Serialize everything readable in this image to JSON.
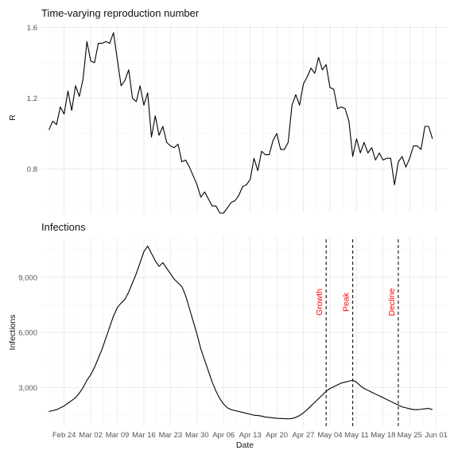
{
  "chart_data": [
    {
      "type": "line",
      "title": "Time-varying reproduction number",
      "xlabel": "",
      "ylabel": "R",
      "ylim": [
        0.55,
        1.62
      ],
      "yticks": [
        0.8,
        1.2,
        1.6
      ],
      "ytick_labels": [
        "0.8",
        "1.2",
        "1.6"
      ],
      "grid": true,
      "x_start": "2020-02-20",
      "x_step_days": 1,
      "series": [
        {
          "color": "#000000",
          "values": [
            1.02,
            1.07,
            1.05,
            1.15,
            1.11,
            1.24,
            1.13,
            1.27,
            1.21,
            1.31,
            1.52,
            1.41,
            1.4,
            1.51,
            1.51,
            1.52,
            1.51,
            1.57,
            1.42,
            1.27,
            1.3,
            1.36,
            1.2,
            1.18,
            1.27,
            1.16,
            1.23,
            0.98,
            1.1,
            0.99,
            1.04,
            0.95,
            0.93,
            0.92,
            0.94,
            0.84,
            0.85,
            0.81,
            0.76,
            0.71,
            0.64,
            0.67,
            0.63,
            0.59,
            0.59,
            0.55,
            0.55,
            0.58,
            0.61,
            0.62,
            0.65,
            0.7,
            0.71,
            0.74,
            0.86,
            0.79,
            0.9,
            0.88,
            0.88,
            0.96,
            1.0,
            0.91,
            0.91,
            0.95,
            1.16,
            1.22,
            1.16,
            1.28,
            1.32,
            1.37,
            1.34,
            1.43,
            1.36,
            1.39,
            1.26,
            1.25,
            1.14,
            1.15,
            1.14,
            1.07,
            0.87,
            0.97,
            0.89,
            0.95,
            0.89,
            0.92,
            0.85,
            0.89,
            0.85,
            0.86,
            0.86,
            0.71,
            0.84,
            0.87,
            0.81,
            0.86,
            0.93,
            0.93,
            0.91,
            1.04,
            1.04,
            0.97
          ]
        }
      ]
    },
    {
      "type": "line",
      "title": "Infections",
      "xlabel": "Date",
      "ylabel": "Infections",
      "ylim": [
        900,
        11200
      ],
      "yticks": [
        3000,
        6000,
        9000
      ],
      "ytick_labels": [
        "3,000",
        "6,000",
        "9,000"
      ],
      "grid": true,
      "x_start": "2020-02-20",
      "x_step_days": 1,
      "x_ticks": [
        "2020-02-24",
        "2020-03-02",
        "2020-03-09",
        "2020-03-16",
        "2020-03-23",
        "2020-03-30",
        "2020-04-06",
        "2020-04-13",
        "2020-04-20",
        "2020-04-27",
        "2020-05-04",
        "2020-05-11",
        "2020-05-18",
        "2020-05-25",
        "2020-06-01"
      ],
      "x_tick_labels": [
        "Feb 24",
        "Mar 02",
        "Mar 09",
        "Mar 16",
        "Mar 23",
        "Mar 30",
        "Apr 06",
        "Apr 13",
        "Apr 20",
        "Apr 27",
        "May 04",
        "May 11",
        "May 18",
        "May 25",
        "Jun 01"
      ],
      "series": [
        {
          "color": "#000000",
          "values": [
            1700,
            1750,
            1800,
            1900,
            2000,
            2150,
            2300,
            2450,
            2700,
            3000,
            3400,
            3700,
            4100,
            4600,
            5100,
            5700,
            6300,
            6900,
            7350,
            7600,
            7800,
            8200,
            8700,
            9200,
            9800,
            10400,
            10700,
            10300,
            9900,
            9600,
            9800,
            9500,
            9200,
            8900,
            8700,
            8500,
            8000,
            7300,
            6600,
            5900,
            5100,
            4500,
            3900,
            3300,
            2800,
            2400,
            2100,
            1900,
            1800,
            1750,
            1700,
            1650,
            1600,
            1550,
            1500,
            1480,
            1450,
            1400,
            1380,
            1350,
            1330,
            1320,
            1310,
            1300,
            1320,
            1380,
            1480,
            1620,
            1800,
            2000,
            2200,
            2400,
            2600,
            2800,
            2950,
            3050,
            3150,
            3250,
            3300,
            3350,
            3400,
            3300,
            3100,
            2950,
            2850,
            2750,
            2650,
            2550,
            2450,
            2350,
            2250,
            2150,
            2050,
            1950,
            1900,
            1850,
            1800,
            1800,
            1820,
            1850,
            1870,
            1800
          ]
        }
      ],
      "annotations": [
        {
          "date": "2020-05-03",
          "label": "Growth",
          "color": "#ff0000"
        },
        {
          "date": "2020-05-10",
          "label": "Peak",
          "color": "#ff0000"
        },
        {
          "date": "2020-05-22",
          "label": "Decline",
          "color": "#ff0000"
        }
      ]
    }
  ]
}
